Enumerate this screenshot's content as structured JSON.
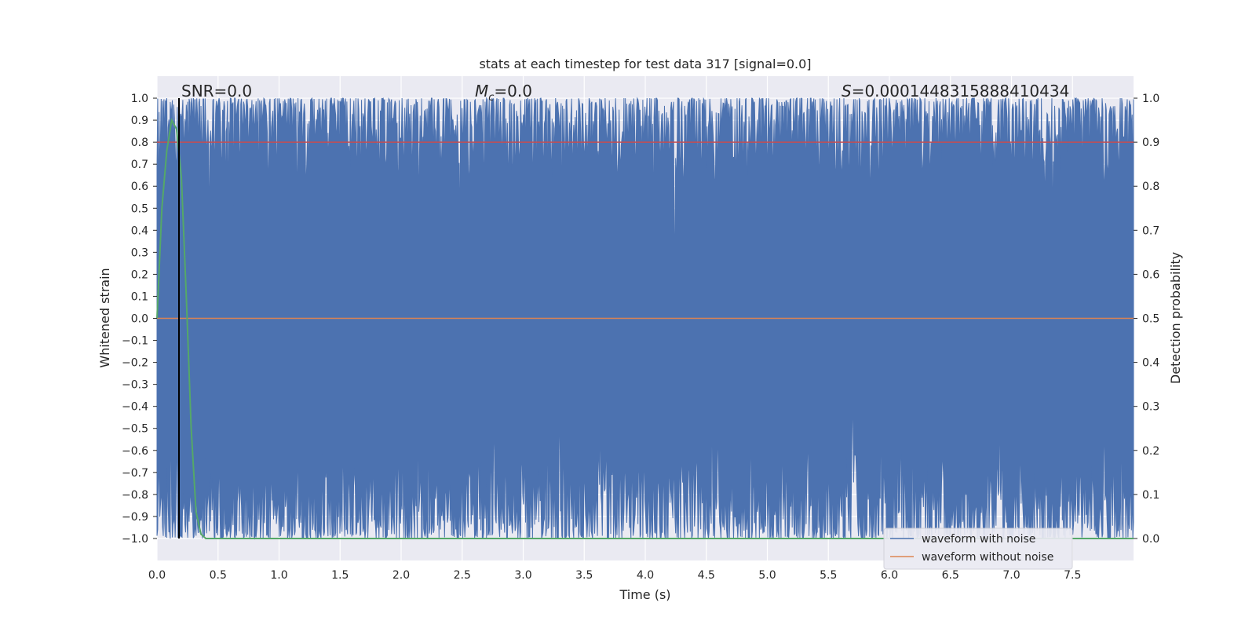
{
  "chart_data": {
    "type": "line",
    "title": "stats at each timestep for test data 317 [signal=0.0]",
    "xlabel": "Time (s)",
    "ylabel_left": "Whitened strain",
    "ylabel_right": "Detection probability",
    "xlim": [
      0.0,
      8.0
    ],
    "ylim_left": [
      -1.1,
      1.1
    ],
    "ylim_right": [
      -0.05,
      1.05
    ],
    "x_ticks": [
      "0.0",
      "0.5",
      "1.0",
      "1.5",
      "2.0",
      "2.5",
      "3.0",
      "3.5",
      "4.0",
      "4.5",
      "5.0",
      "5.5",
      "6.0",
      "6.5",
      "7.0",
      "7.5"
    ],
    "x_tick_values": [
      0.0,
      0.5,
      1.0,
      1.5,
      2.0,
      2.5,
      3.0,
      3.5,
      4.0,
      4.5,
      5.0,
      5.5,
      6.0,
      6.5,
      7.0,
      7.5
    ],
    "y_left_ticks": [
      "1.0",
      "0.9",
      "0.8",
      "0.7",
      "0.6",
      "0.5",
      "0.4",
      "0.3",
      "0.2",
      "0.1",
      "0.0",
      "−0.1",
      "−0.2",
      "−0.3",
      "−0.4",
      "−0.5",
      "−0.6",
      "−0.7",
      "−0.8",
      "−0.9",
      "−1.0"
    ],
    "y_left_tick_values": [
      1.0,
      0.9,
      0.8,
      0.7,
      0.6,
      0.5,
      0.4,
      0.3,
      0.2,
      0.1,
      0.0,
      -0.1,
      -0.2,
      -0.3,
      -0.4,
      -0.5,
      -0.6,
      -0.7,
      -0.8,
      -0.9,
      -1.0
    ],
    "y_right_ticks": [
      "1.0",
      "0.9",
      "0.8",
      "0.7",
      "0.6",
      "0.5",
      "0.4",
      "0.3",
      "0.2",
      "0.1",
      "0.0"
    ],
    "y_right_tick_values": [
      1.0,
      0.9,
      0.8,
      0.7,
      0.6,
      0.5,
      0.4,
      0.3,
      0.2,
      0.1,
      0.0
    ],
    "grid": true,
    "legend_position": "bottom-right",
    "annotations": {
      "snr": "SNR=0.0",
      "mc_symbol": "M",
      "mc_sub": "c",
      "mc_value": "=0.0",
      "s_symbol": "S",
      "s_value": "=0.0001448315888410434"
    },
    "vline_x": 0.18,
    "threshold_line_right": 0.9,
    "series": [
      {
        "name": "waveform with noise",
        "color": "#4c72b0",
        "axis": "left",
        "description_values": "dense whitened strain clipped to [-1, 1]"
      },
      {
        "name": "waveform without noise",
        "color": "#dd8452",
        "axis": "left",
        "values_const": 0.0
      },
      {
        "axis": "right",
        "color": "#55a868",
        "x": [
          0.0,
          0.04,
          0.08,
          0.12,
          0.16,
          0.2,
          0.24,
          0.28,
          0.32,
          0.36,
          0.4,
          8.0
        ],
        "values": [
          0.5,
          0.75,
          0.88,
          0.95,
          0.93,
          0.82,
          0.55,
          0.25,
          0.06,
          0.01,
          0.0,
          0.0
        ]
      }
    ],
    "threshold_color": "#c44e52",
    "vline_color": "#000000"
  }
}
